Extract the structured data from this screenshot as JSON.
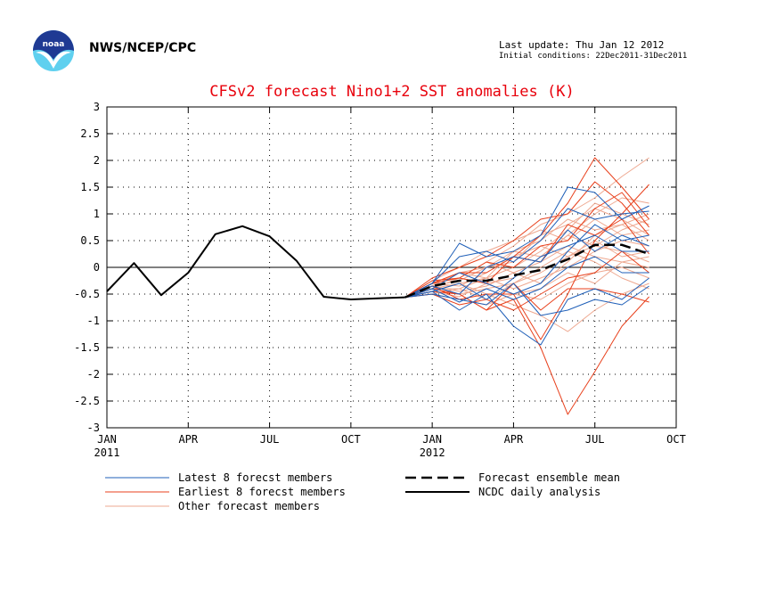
{
  "header": {
    "org": "NWS/NCEP/CPC",
    "last_update": "Last update: Thu Jan 12 2012",
    "initial_conditions": "Initial conditions: 22Dec2011-31Dec2011",
    "logo_text": "noaa"
  },
  "colors": {
    "title": "#e8000b",
    "latest": "#1f5fb8",
    "earliest": "#e8401c",
    "other": "#eea890",
    "mean": "#000000",
    "analysis": "#000000",
    "logo_dark": "#1f3a93",
    "logo_light": "#5fd0ef"
  },
  "chart_data": {
    "type": "line",
    "title": "CFSv2 forecast Nino1+2 SST anomalies (K)",
    "xlim": [
      0,
      21
    ],
    "ylim": [
      -3,
      3
    ],
    "yticks": [
      -3,
      -2.5,
      -2,
      -1.5,
      -1,
      -0.5,
      0,
      0.5,
      1,
      1.5,
      2,
      2.5,
      3
    ],
    "ytick_labels": [
      "-3",
      "-2.5",
      "-2",
      "-1.5",
      "-1",
      "-0.5",
      "0",
      "0.5",
      "1",
      "1.5",
      "2",
      "2.5",
      "3"
    ],
    "xticks": [
      {
        "x": 0,
        "label": "JAN",
        "sub": "2011"
      },
      {
        "x": 3,
        "label": "APR",
        "sub": ""
      },
      {
        "x": 6,
        "label": "JUL",
        "sub": ""
      },
      {
        "x": 9,
        "label": "OCT",
        "sub": ""
      },
      {
        "x": 12,
        "label": "JAN",
        "sub": "2012"
      },
      {
        "x": 15,
        "label": "APR",
        "sub": ""
      },
      {
        "x": 18,
        "label": "JUL",
        "sub": ""
      },
      {
        "x": 21,
        "label": "OCT",
        "sub": ""
      }
    ],
    "grid": true,
    "legend_position": "bottom",
    "legend": [
      {
        "label": "Latest 8 forecst members",
        "style": "latest"
      },
      {
        "label": "Earliest 8 forecst members",
        "style": "earliest"
      },
      {
        "label": "Other forecast members",
        "style": "other"
      },
      {
        "label": "Forecast ensemble mean",
        "style": "mean"
      },
      {
        "label": "NCDC daily analysis",
        "style": "analysis"
      }
    ],
    "analysis": {
      "name": "NCDC daily analysis",
      "x": [
        0,
        1,
        2,
        3,
        4,
        5,
        6,
        7,
        8,
        9,
        10,
        11
      ],
      "y": [
        -0.45,
        0.08,
        -0.52,
        -0.1,
        0.62,
        0.77,
        0.58,
        0.12,
        -0.55,
        -0.6,
        -0.58,
        -0.56
      ]
    },
    "ensemble_mean": {
      "name": "Forecast ensemble mean",
      "x": [
        11,
        12,
        13,
        14,
        15,
        16,
        17,
        18,
        19,
        20
      ],
      "y": [
        -0.56,
        -0.35,
        -0.25,
        -0.25,
        -0.15,
        -0.05,
        0.15,
        0.42,
        0.42,
        0.25
      ]
    },
    "forecast_x": [
      11,
      12,
      13,
      14,
      15,
      16,
      17,
      18,
      19,
      20
    ],
    "latest_members": [
      [
        -0.56,
        -0.3,
        0.45,
        0.2,
        0.3,
        0.6,
        1.5,
        1.4,
        0.9,
        1.15
      ],
      [
        -0.56,
        -0.45,
        -0.8,
        -0.5,
        -1.1,
        -1.45,
        -0.6,
        -0.4,
        -0.6,
        -0.2
      ],
      [
        -0.56,
        -0.4,
        -0.1,
        -0.3,
        -0.5,
        -0.3,
        0.3,
        0.8,
        0.5,
        0.6
      ],
      [
        -0.56,
        -0.35,
        -0.5,
        0.0,
        0.2,
        0.1,
        0.7,
        0.3,
        0.6,
        0.4
      ],
      [
        -0.56,
        -0.5,
        -0.6,
        -0.7,
        -0.3,
        -0.9,
        -0.8,
        -0.6,
        -0.7,
        -0.35
      ],
      [
        -0.56,
        -0.3,
        0.2,
        0.3,
        0.1,
        0.5,
        1.1,
        0.9,
        1.0,
        1.05
      ],
      [
        -0.56,
        -0.45,
        -0.3,
        -0.6,
        -0.2,
        0.2,
        0.4,
        0.6,
        0.3,
        0.3
      ],
      [
        -0.56,
        -0.4,
        -0.65,
        -0.4,
        -0.6,
        -0.4,
        0.0,
        0.2,
        -0.1,
        -0.1
      ]
    ],
    "earliest_members": [
      [
        -0.56,
        -0.4,
        -0.5,
        -0.8,
        -0.6,
        -1.5,
        -2.75,
        -1.95,
        -1.1,
        -0.55
      ],
      [
        -0.56,
        -0.3,
        -0.2,
        -0.3,
        0.2,
        0.6,
        1.2,
        2.05,
        1.5,
        0.9
      ],
      [
        -0.56,
        -0.35,
        -0.6,
        -0.5,
        -0.5,
        -1.35,
        -0.5,
        0.5,
        1.0,
        1.55
      ],
      [
        -0.56,
        -0.2,
        0.0,
        0.2,
        0.5,
        0.9,
        1.0,
        1.6,
        1.2,
        0.6
      ],
      [
        -0.56,
        -0.45,
        -0.5,
        -0.8,
        -0.3,
        -0.8,
        -0.4,
        -0.4,
        -0.5,
        -0.65
      ],
      [
        -0.56,
        -0.3,
        -0.1,
        -0.1,
        0.2,
        0.1,
        0.8,
        0.6,
        0.9,
        0.25
      ],
      [
        -0.56,
        -0.5,
        -0.7,
        -0.6,
        -0.8,
        -0.5,
        -0.2,
        -0.1,
        0.3,
        -0.1
      ],
      [
        -0.56,
        -0.25,
        -0.2,
        0.1,
        0.0,
        0.4,
        0.5,
        1.1,
        1.4,
        0.75
      ]
    ],
    "other_members": [
      [
        -0.56,
        -0.3,
        -0.2,
        0.1,
        0.4,
        0.8,
        1.0,
        1.3,
        1.7,
        2.05
      ],
      [
        -0.56,
        -0.4,
        -0.3,
        -0.2,
        0.0,
        0.3,
        0.7,
        1.2,
        1.0,
        0.8
      ],
      [
        -0.56,
        -0.45,
        -0.5,
        -0.4,
        -0.3,
        -0.1,
        0.2,
        0.4,
        0.3,
        0.1
      ],
      [
        -0.56,
        -0.35,
        -0.1,
        0.0,
        0.3,
        0.5,
        0.9,
        0.7,
        0.8,
        0.5
      ],
      [
        -0.56,
        -0.5,
        -0.6,
        -0.7,
        -0.5,
        -0.6,
        -0.3,
        -0.1,
        0.0,
        -0.2
      ],
      [
        -0.56,
        -0.3,
        -0.2,
        -0.3,
        -0.2,
        0.2,
        0.6,
        1.0,
        1.3,
        1.2
      ],
      [
        -0.56,
        -0.4,
        -0.4,
        -0.2,
        -0.4,
        -0.2,
        0.0,
        0.3,
        0.5,
        0.4
      ],
      [
        -0.56,
        -0.45,
        -0.3,
        -0.5,
        -0.7,
        -0.9,
        -1.2,
        -0.8,
        -0.5,
        -0.3
      ],
      [
        -0.56,
        -0.25,
        0.0,
        0.3,
        0.5,
        0.7,
        0.5,
        0.9,
        0.6,
        0.7
      ],
      [
        -0.56,
        -0.35,
        -0.45,
        -0.35,
        -0.1,
        0.1,
        0.4,
        0.2,
        0.1,
        0.0
      ],
      [
        -0.56,
        -0.4,
        -0.2,
        0.1,
        -0.1,
        -0.3,
        0.1,
        0.6,
        0.8,
        1.0
      ],
      [
        -0.56,
        -0.3,
        -0.35,
        -0.1,
        0.2,
        0.4,
        0.2,
        0.5,
        0.2,
        0.3
      ],
      [
        -0.56,
        -0.5,
        -0.4,
        -0.6,
        -0.3,
        0.0,
        0.3,
        0.1,
        -0.2,
        -0.4
      ],
      [
        -0.56,
        -0.35,
        -0.25,
        0.0,
        0.1,
        0.6,
        0.8,
        1.1,
        0.9,
        0.6
      ],
      [
        -0.56,
        -0.45,
        -0.55,
        -0.3,
        -0.5,
        -0.4,
        -0.1,
        -0.3,
        0.1,
        0.2
      ],
      [
        -0.56,
        -0.3,
        -0.1,
        -0.2,
        0.3,
        0.2,
        0.6,
        0.4,
        0.7,
        0.9
      ]
    ]
  }
}
